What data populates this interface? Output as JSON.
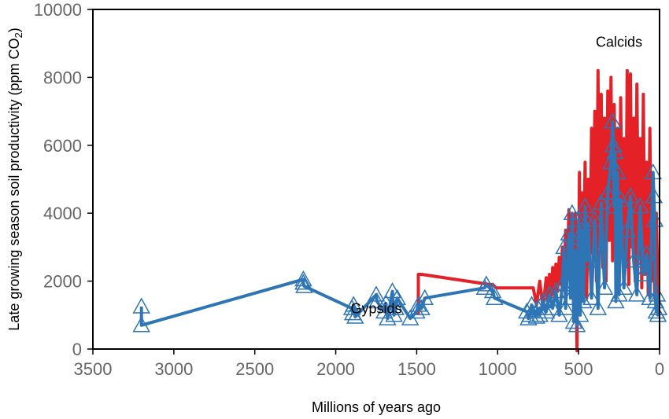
{
  "chart_data": {
    "type": "line",
    "xlabel": "Millions of years ago",
    "ylabel": "Late growing season soil productivity (ppm CO",
    "ylabel_subscript": "2",
    "ylabel_close": ")",
    "xlim": [
      3500,
      0
    ],
    "ylim": [
      0,
      10000
    ],
    "x_ticks": [
      3500,
      3000,
      2500,
      2000,
      1500,
      1000,
      500,
      0
    ],
    "y_ticks": [
      0,
      2000,
      4000,
      6000,
      8000,
      10000
    ],
    "x_tick_labels": [
      "3500",
      "3000",
      "2500",
      "2000",
      "1500",
      "1000",
      "500",
      "0"
    ],
    "y_tick_labels": [
      "0",
      "2000",
      "4000",
      "6000",
      "8000",
      "10000"
    ],
    "grid": false,
    "annotations": [
      {
        "text": "Calcids",
        "x": 250,
        "y": 8900
      },
      {
        "text": "Gypsids",
        "x": 1750,
        "y": 1050
      }
    ],
    "series": [
      {
        "label": "Calcids",
        "color": "#e32127",
        "marker": "none",
        "x": [
          1490,
          1490,
          1470,
          1050,
          1030,
          1010,
          780,
          760,
          740,
          720,
          700,
          690,
          680,
          670,
          660,
          650,
          640,
          630,
          620,
          610,
          600,
          590,
          580,
          570,
          560,
          550,
          540,
          530,
          520,
          510,
          505,
          500,
          495,
          490,
          480,
          470,
          460,
          450,
          440,
          430,
          420,
          410,
          400,
          390,
          380,
          370,
          360,
          350,
          340,
          330,
          320,
          310,
          300,
          290,
          280,
          270,
          260,
          250,
          240,
          230,
          220,
          210,
          200,
          190,
          180,
          170,
          160,
          150,
          140,
          130,
          120,
          110,
          100,
          90,
          80,
          70,
          60,
          50,
          40,
          30,
          20,
          10,
          5
        ],
        "y": [
          1000,
          2200,
          2200,
          1900,
          1900,
          1800,
          1800,
          1300,
          2000,
          1200,
          2100,
          1400,
          2200,
          1500,
          2400,
          1600,
          2500,
          1700,
          2700,
          1900,
          3000,
          2000,
          3500,
          2200,
          4100,
          2000,
          3800,
          1200,
          4000,
          -50,
          3000,
          2200,
          5200,
          2000,
          4600,
          2100,
          5500,
          1500,
          5000,
          2500,
          6500,
          2800,
          7000,
          2000,
          8200,
          3000,
          7500,
          2400,
          6800,
          2000,
          7600,
          3200,
          8000,
          2600,
          7200,
          3000,
          6500,
          2200,
          7400,
          2800,
          6200,
          2400,
          8200,
          1900,
          8100,
          3000,
          6800,
          2000,
          7800,
          2800,
          6200,
          1800,
          7500,
          2200,
          5500,
          1600,
          6500,
          2000,
          5000,
          1500,
          4000,
          1800,
          1400
        ]
      },
      {
        "label": "Gypsids",
        "color": "#2e75b6",
        "marker": "triangle",
        "x": [
          3200,
          3200,
          2200,
          2200,
          2195,
          1900,
          1895,
          1890,
          1880,
          1750,
          1745,
          1700,
          1690,
          1680,
          1650,
          1640,
          1630,
          1620,
          1540,
          1500,
          1490,
          1470,
          1450,
          1080,
          1070,
          1030,
          1020,
          820,
          810,
          800,
          790,
          760,
          750,
          740,
          720,
          700,
          680,
          660,
          640,
          620,
          600,
          590,
          580,
          560,
          550,
          540,
          530,
          520,
          510,
          500,
          490,
          480,
          470,
          460,
          450,
          440,
          420,
          400,
          380,
          360,
          340,
          320,
          300,
          290,
          285,
          280,
          275,
          270,
          260,
          250,
          240,
          220,
          200,
          180,
          160,
          140,
          120,
          100,
          80,
          60,
          40,
          35,
          30,
          25,
          20,
          15,
          10,
          5
        ],
        "y": [
          1250,
          700,
          2050,
          1950,
          1850,
          1200,
          1050,
          1300,
          950,
          1600,
          1400,
          1100,
          1350,
          900,
          1700,
          1000,
          1200,
          1500,
          900,
          1100,
          1300,
          1200,
          1500,
          1800,
          1900,
          1700,
          1500,
          1100,
          900,
          1000,
          1300,
          950,
          1200,
          1000,
          1400,
          1100,
          1600,
          1200,
          1700,
          1000,
          1900,
          3000,
          1200,
          3400,
          1500,
          4000,
          800,
          2900,
          700,
          3800,
          1000,
          3500,
          1400,
          4200,
          2600,
          3700,
          1500,
          3800,
          1200,
          4300,
          1800,
          4600,
          5500,
          6700,
          6000,
          4200,
          5800,
          1400,
          5200,
          1600,
          4400,
          1800,
          3500,
          4500,
          2600,
          1600,
          4200,
          2200,
          2800,
          1500,
          5200,
          4500,
          3800,
          1400,
          1100,
          1600,
          1000,
          1200
        ]
      }
    ]
  }
}
